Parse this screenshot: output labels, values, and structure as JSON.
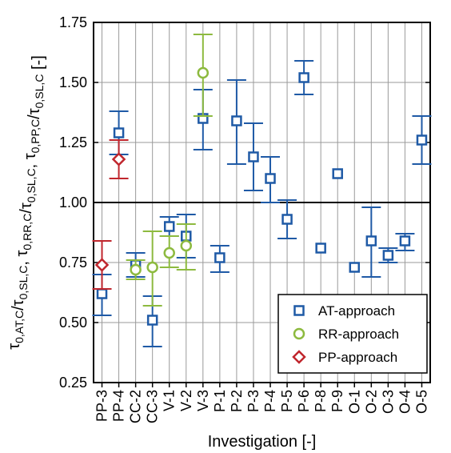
{
  "chart_data": {
    "type": "scatter",
    "xlabel": "Investigation [-]",
    "ylabel_parts": [
      {
        "t": "τ",
        "s": "0,AT,C"
      },
      {
        "t": "/τ",
        "s": "0,SL,C"
      },
      {
        "t": ", τ",
        "s": "0,RR,C"
      },
      {
        "t": "/τ",
        "s": "0,SL,C"
      },
      {
        "t": ", τ",
        "s": "0,PP,C"
      },
      {
        "t": "/τ",
        "s": "0,SL,C"
      },
      {
        "t": " [-]",
        "s": ""
      }
    ],
    "categories": [
      "PP-3",
      "PP-4",
      "CC-2",
      "CC-3",
      "V-1",
      "V-2",
      "V-3",
      "P-1",
      "P-2",
      "P-3",
      "P-4",
      "P-5",
      "P-6",
      "P-8",
      "P-9",
      "O-1",
      "O-2",
      "O-3",
      "O-4",
      "O-5"
    ],
    "ylim": [
      0.25,
      1.75
    ],
    "yticks": [
      "0.25",
      "0.50",
      "0.75",
      "1.00",
      "1.25",
      "1.50",
      "1.75"
    ],
    "reference_line": 1.0,
    "grid": true,
    "legend_position": "bottom-right",
    "series": [
      {
        "name": "AT-approach",
        "marker": "square",
        "color": "#1f5aa6",
        "points": [
          {
            "c": "PP-3",
            "y": 0.62,
            "lo": 0.53,
            "hi": 0.7
          },
          {
            "c": "PP-4",
            "y": 1.29,
            "lo": 1.2,
            "hi": 1.38
          },
          {
            "c": "CC-2",
            "y": 0.74,
            "lo": 0.69,
            "hi": 0.79
          },
          {
            "c": "CC-3",
            "y": 0.51,
            "lo": 0.4,
            "hi": 0.61
          },
          {
            "c": "V-1",
            "y": 0.9,
            "lo": 0.86,
            "hi": 0.94
          },
          {
            "c": "V-2",
            "y": 0.86,
            "lo": 0.77,
            "hi": 0.95
          },
          {
            "c": "V-3",
            "y": 1.35,
            "lo": 1.22,
            "hi": 1.47
          },
          {
            "c": "P-1",
            "y": 0.77,
            "lo": 0.71,
            "hi": 0.82
          },
          {
            "c": "P-2",
            "y": 1.34,
            "lo": 1.16,
            "hi": 1.51
          },
          {
            "c": "P-3",
            "y": 1.19,
            "lo": 1.05,
            "hi": 1.33
          },
          {
            "c": "P-4",
            "y": 1.1,
            "lo": 1.0,
            "hi": 1.19
          },
          {
            "c": "P-5",
            "y": 0.93,
            "lo": 0.85,
            "hi": 1.01
          },
          {
            "c": "P-6",
            "y": 1.52,
            "lo": 1.45,
            "hi": 1.59
          },
          {
            "c": "P-8",
            "y": 0.81,
            "lo": null,
            "hi": null
          },
          {
            "c": "P-9",
            "y": 1.12,
            "lo": null,
            "hi": null
          },
          {
            "c": "O-1",
            "y": 0.73,
            "lo": null,
            "hi": null
          },
          {
            "c": "O-2",
            "y": 0.84,
            "lo": 0.69,
            "hi": 0.98
          },
          {
            "c": "O-3",
            "y": 0.78,
            "lo": 0.75,
            "hi": 0.81
          },
          {
            "c": "O-4",
            "y": 0.84,
            "lo": 0.8,
            "hi": 0.87
          },
          {
            "c": "O-5",
            "y": 1.26,
            "lo": 1.16,
            "hi": 1.36
          }
        ]
      },
      {
        "name": "RR-approach",
        "marker": "circle",
        "color": "#8dba3f",
        "points": [
          {
            "c": "CC-2",
            "y": 0.72,
            "lo": 0.68,
            "hi": 0.76
          },
          {
            "c": "CC-3",
            "y": 0.73,
            "lo": 0.57,
            "hi": 0.88
          },
          {
            "c": "V-1",
            "y": 0.79,
            "lo": 0.73,
            "hi": 0.86
          },
          {
            "c": "V-2",
            "y": 0.82,
            "lo": 0.72,
            "hi": 0.91
          },
          {
            "c": "V-3",
            "y": 1.54,
            "lo": 1.36,
            "hi": 1.7
          }
        ]
      },
      {
        "name": "PP-approach",
        "marker": "diamond",
        "color": "#c0262d",
        "points": [
          {
            "c": "PP-3",
            "y": 0.74,
            "lo": 0.64,
            "hi": 0.84
          },
          {
            "c": "PP-4",
            "y": 1.18,
            "lo": 1.1,
            "hi": 1.26
          }
        ]
      }
    ]
  }
}
